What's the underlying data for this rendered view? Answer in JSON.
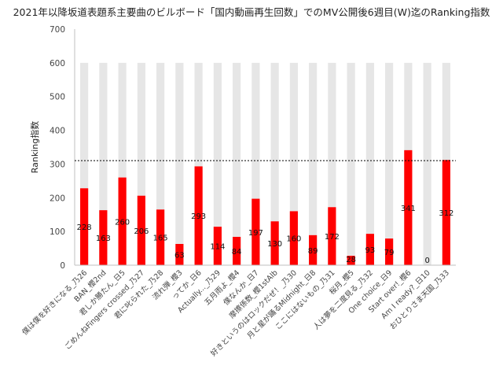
{
  "chart_data": {
    "type": "bar",
    "title": "2021年以降坂道表題系主要曲のビルボード「国内動画再生回数」でのMV公開後6週目(W)迄のRanking指数",
    "xlabel": "",
    "ylabel": "Ranking指数",
    "ylim": [
      0,
      700
    ],
    "yticks": [
      0,
      100,
      200,
      300,
      400,
      500,
      600,
      700
    ],
    "reference_line": 310,
    "categories": [
      "僕は僕を好きになる_乃26",
      "BAN_櫻2nd",
      "君しか勝たん_日5",
      "ごめんねFingers crossed_乃27",
      "君に叱られた_乃28",
      "流れ弾_櫻3",
      "ってか_日6",
      "Actually..._乃29",
      "五月雨よ_櫻4",
      "僕なんか_日7",
      "摩擦係数_櫻1stAlb",
      "好きというのはロックだぜ！_乃30",
      "月と星が踊るMidnight_日8",
      "ここにはないもの_乃31",
      "桜月_櫻5",
      "人は夢を二度見る_乃32",
      "One choice_日9",
      "Start over!_櫻6",
      "Am I ready?_日10",
      "おひとりさま天国_乃33"
    ],
    "series": [
      {
        "values": [
          228,
          163,
          260,
          206,
          165,
          63,
          293,
          114,
          84,
          197,
          130,
          160,
          89,
          172,
          28,
          93,
          79,
          341,
          0,
          312
        ]
      }
    ],
    "background_value": 600,
    "colors": {
      "bar": "#ff0000",
      "background_bar": "#e6e6e6",
      "axis": "#bfbfbf"
    },
    "grid": false,
    "legend": "none"
  }
}
